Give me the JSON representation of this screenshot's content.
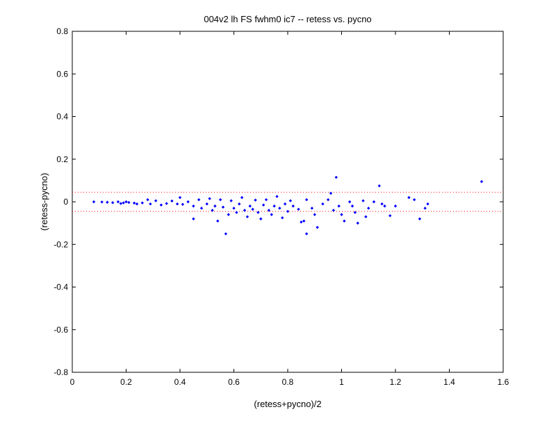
{
  "chart_data": {
    "type": "scatter",
    "title": "004v2 lh FS fwhm0 ic7 -- retess vs. pycno",
    "xlabel": "(retess+pycno)/2",
    "ylabel": "(retess-pycno)",
    "xlim": [
      0,
      1.6
    ],
    "ylim": [
      -0.8,
      0.8
    ],
    "x_ticks": [
      "0",
      "0.2",
      "0.4",
      "0.6",
      "0.8",
      "1",
      "1.2",
      "1.4",
      "1.6"
    ],
    "y_ticks": [
      "-0.8",
      "-0.6",
      "-0.4",
      "-0.2",
      "0",
      "0.2",
      "0.4",
      "0.6",
      "0.8"
    ],
    "grid": false,
    "marker_color": "#0000ff",
    "reference_line_color": "#ff0000",
    "reference_lines": [
      0.045,
      -0.045
    ],
    "series": [
      {
        "points": [
          [
            0.08,
            0.0
          ],
          [
            0.11,
            -0.001
          ],
          [
            0.13,
            -0.002
          ],
          [
            0.15,
            -0.004
          ],
          [
            0.17,
            0.0
          ],
          [
            0.18,
            -0.008
          ],
          [
            0.19,
            -0.005
          ],
          [
            0.2,
            0.0
          ],
          [
            0.21,
            -0.003
          ],
          [
            0.23,
            -0.006
          ],
          [
            0.24,
            -0.01
          ],
          [
            0.26,
            -0.005
          ],
          [
            0.28,
            0.01
          ],
          [
            0.29,
            -0.01
          ],
          [
            0.31,
            0.005
          ],
          [
            0.33,
            -0.015
          ],
          [
            0.35,
            -0.008
          ],
          [
            0.37,
            0.004
          ],
          [
            0.39,
            -0.01
          ],
          [
            0.4,
            0.02
          ],
          [
            0.41,
            -0.012
          ],
          [
            0.43,
            0.0
          ],
          [
            0.45,
            -0.02
          ],
          [
            0.45,
            -0.08
          ],
          [
            0.47,
            0.01
          ],
          [
            0.48,
            -0.03
          ],
          [
            0.5,
            -0.01
          ],
          [
            0.51,
            0.015
          ],
          [
            0.52,
            -0.04
          ],
          [
            0.53,
            -0.02
          ],
          [
            0.54,
            -0.09
          ],
          [
            0.55,
            0.01
          ],
          [
            0.56,
            -0.025
          ],
          [
            0.57,
            -0.15
          ],
          [
            0.58,
            -0.06
          ],
          [
            0.59,
            0.005
          ],
          [
            0.6,
            -0.03
          ],
          [
            0.61,
            -0.05
          ],
          [
            0.62,
            -0.01
          ],
          [
            0.63,
            0.02
          ],
          [
            0.64,
            -0.04
          ],
          [
            0.65,
            -0.07
          ],
          [
            0.66,
            -0.02
          ],
          [
            0.67,
            -0.035
          ],
          [
            0.68,
            0.008
          ],
          [
            0.69,
            -0.05
          ],
          [
            0.7,
            -0.08
          ],
          [
            0.71,
            -0.015
          ],
          [
            0.72,
            0.01
          ],
          [
            0.73,
            -0.04
          ],
          [
            0.74,
            -0.06
          ],
          [
            0.75,
            -0.02
          ],
          [
            0.76,
            0.025
          ],
          [
            0.77,
            -0.03
          ],
          [
            0.78,
            -0.075
          ],
          [
            0.79,
            -0.01
          ],
          [
            0.8,
            -0.045
          ],
          [
            0.81,
            0.005
          ],
          [
            0.82,
            -0.02
          ],
          [
            0.84,
            -0.035
          ],
          [
            0.85,
            -0.095
          ],
          [
            0.86,
            -0.09
          ],
          [
            0.87,
            -0.15
          ],
          [
            0.87,
            0.01
          ],
          [
            0.89,
            -0.03
          ],
          [
            0.9,
            -0.06
          ],
          [
            0.91,
            -0.12
          ],
          [
            0.93,
            -0.01
          ],
          [
            0.95,
            0.01
          ],
          [
            0.96,
            0.04
          ],
          [
            0.97,
            -0.04
          ],
          [
            0.98,
            0.115
          ],
          [
            0.99,
            -0.02
          ],
          [
            1.0,
            -0.06
          ],
          [
            1.01,
            -0.09
          ],
          [
            1.03,
            0.0
          ],
          [
            1.04,
            -0.02
          ],
          [
            1.05,
            -0.05
          ],
          [
            1.06,
            -0.1
          ],
          [
            1.08,
            0.005
          ],
          [
            1.09,
            -0.07
          ],
          [
            1.1,
            -0.03
          ],
          [
            1.12,
            0.0
          ],
          [
            1.14,
            0.075
          ],
          [
            1.15,
            -0.01
          ],
          [
            1.16,
            -0.02
          ],
          [
            1.18,
            -0.065
          ],
          [
            1.2,
            -0.02
          ],
          [
            1.25,
            0.02
          ],
          [
            1.27,
            0.01
          ],
          [
            1.29,
            -0.08
          ],
          [
            1.31,
            -0.03
          ],
          [
            1.32,
            -0.01
          ],
          [
            1.52,
            0.095
          ]
        ]
      }
    ]
  }
}
